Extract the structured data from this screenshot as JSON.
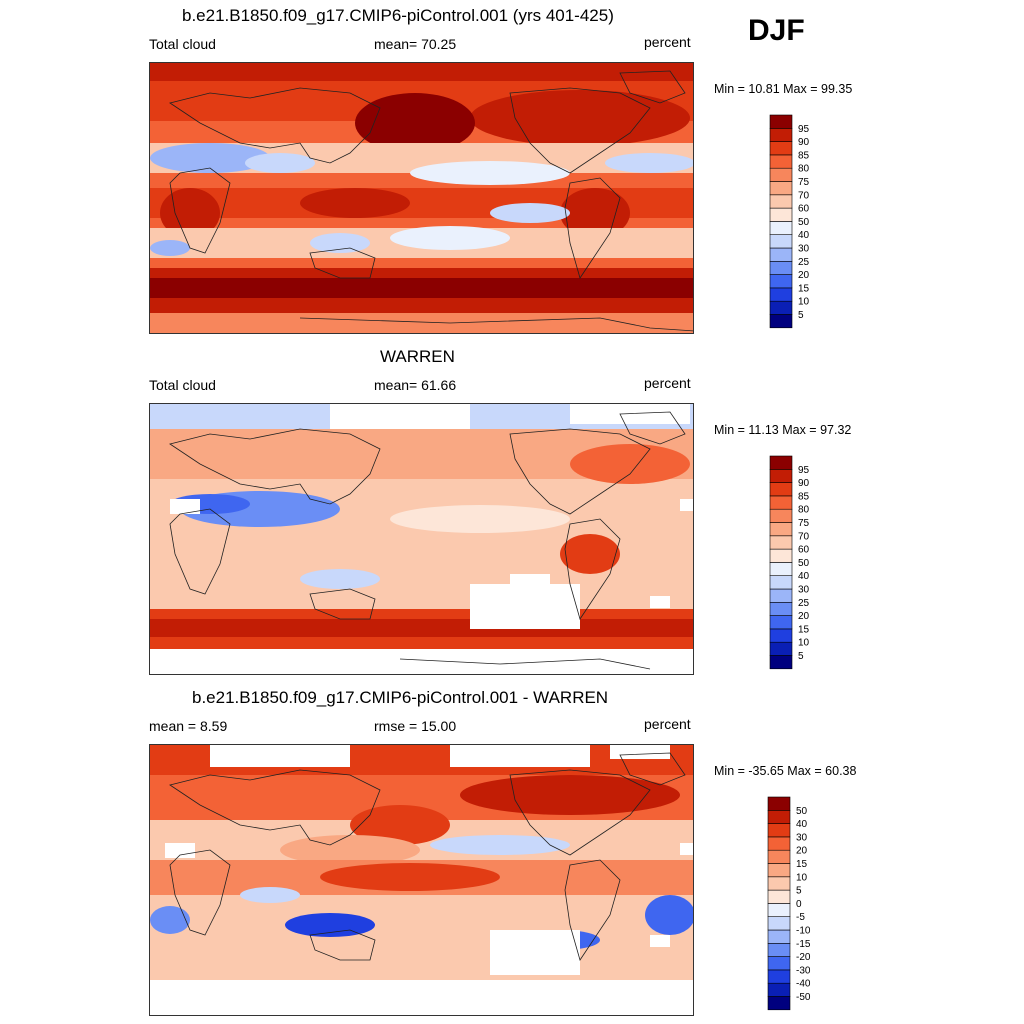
{
  "season": "DJF",
  "colors": {
    "abs_scale": [
      "#00007f",
      "#0a1fb5",
      "#1f3fe0",
      "#3f66f0",
      "#6a8ef5",
      "#9bb5f8",
      "#c8d8fb",
      "#eaf1fd",
      "#fde6d8",
      "#fbc9ae",
      "#f9a883",
      "#f7865c",
      "#f36236",
      "#e23c14",
      "#c21d05",
      "#8b0000"
    ],
    "diff_scale": [
      "#00007f",
      "#0a1fb5",
      "#1f3fe0",
      "#3f66f0",
      "#6a8ef5",
      "#9bb5f8",
      "#c8d8fb",
      "#eaf1fd",
      "#fde6d8",
      "#fbc9ae",
      "#f9a883",
      "#f7865c",
      "#f36236",
      "#e23c14",
      "#c21d05",
      "#8b0000"
    ],
    "missing": "#ffffff",
    "coast": "#222222"
  },
  "panels": [
    {
      "id": "model",
      "title": "b.e21.B1850.f09_g17.CMIP6-piControl.001 (yrs 401-425)",
      "left_label": "Total cloud",
      "center_label": "mean=  70.25",
      "right_label": "percent",
      "minmax": "Min =  10.81 Max =  99.35",
      "colorbar_labels": [
        "5",
        "10",
        "15",
        "20",
        "25",
        "30",
        "40",
        "50",
        "60",
        "70",
        "75",
        "80",
        "85",
        "90",
        "95"
      ]
    },
    {
      "id": "obs",
      "title": "WARREN",
      "left_label": "Total cloud",
      "center_label": "mean=  61.66",
      "right_label": "percent",
      "minmax": "Min =  11.13 Max =  97.32",
      "colorbar_labels": [
        "5",
        "10",
        "15",
        "20",
        "25",
        "30",
        "40",
        "50",
        "60",
        "70",
        "75",
        "80",
        "85",
        "90",
        "95"
      ]
    },
    {
      "id": "diff",
      "title": "b.e21.B1850.f09_g17.CMIP6-piControl.001 - WARREN",
      "left_label": "mean =   8.59",
      "center_label": "rmse =  15.00",
      "right_label": "percent",
      "minmax": "Min = -35.65 Max =  60.38",
      "colorbar_labels": [
        "-50",
        "-40",
        "-30",
        "-20",
        "-15",
        "-10",
        "-5",
        "0",
        "5",
        "10",
        "15",
        "20",
        "30",
        "40",
        "50"
      ]
    }
  ]
}
